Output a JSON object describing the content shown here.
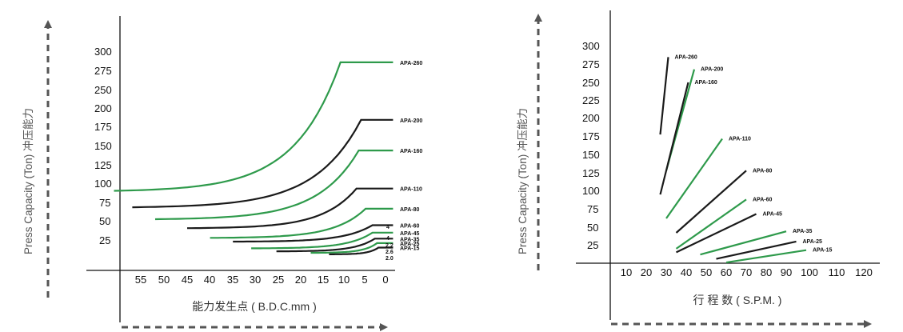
{
  "colors": {
    "green": "#2e9a4b",
    "black": "#1a1a1a",
    "axis": "#111111",
    "arrow": "#555555"
  },
  "chart_data": [
    {
      "type": "line",
      "xlabel": "能力发生点 ( B.D.C.mm )",
      "ylabel": "Press Capacity (Ton)   冲压能力",
      "x_ticks": [
        "55",
        "50",
        "45",
        "40",
        "35",
        "30",
        "25",
        "20",
        "15",
        "10",
        "5",
        "0"
      ],
      "y_ticks": [
        "300",
        "275",
        "250",
        "200",
        "175",
        "150",
        "125",
        "100",
        "75",
        "50",
        "25"
      ],
      "xlim": [
        60,
        0
      ],
      "ylim": [
        0,
        310
      ],
      "series": [
        {
          "name": "APA-260",
          "color": "green",
          "x_start": 59,
          "x_flat": 9.5,
          "y_start": 88,
          "y_flat": 260
        },
        {
          "name": "APA-200",
          "color": "black",
          "x_start": 55,
          "x_flat": 5,
          "y_start": 66,
          "y_flat": 183
        },
        {
          "name": "APA-160",
          "color": "green",
          "x_start": 50,
          "x_flat": 5.5,
          "y_start": 50,
          "y_flat": 142
        },
        {
          "name": "APA-110",
          "color": "black",
          "x_start": 43,
          "x_flat": 6,
          "y_start": 38,
          "y_flat": 91
        },
        {
          "name": "APA-80",
          "color": "green",
          "x_start": 38,
          "x_flat": 4,
          "y_start": 25,
          "y_flat": 64
        },
        {
          "name": "APA-60",
          "color": "black",
          "x_start": 33,
          "x_flat": 2.5,
          "y_start": 20,
          "y_flat": 42
        },
        {
          "name": "APA-45",
          "color": "green",
          "x_start": 29,
          "x_flat": 2.5,
          "y_start": 11,
          "y_flat": 32
        },
        {
          "name": "APA-35",
          "color": "black",
          "x_start": 23.5,
          "x_flat": 2,
          "y_start": 7,
          "y_flat": 24
        },
        {
          "name": "APA-25",
          "color": "green",
          "x_start": 16,
          "x_flat": 1.5,
          "y_start": 5,
          "y_flat": 18
        },
        {
          "name": "APA-15",
          "color": "black",
          "x_start": 12,
          "x_flat": 1.2,
          "y_start": 3,
          "y_flat": 12
        }
      ],
      "annotations": [
        "4",
        "4",
        "2.2",
        "2.6",
        "2.0"
      ]
    },
    {
      "type": "line",
      "xlabel": "行 程 数 ( S.P.M. )",
      "ylabel": "Press Capacity (Ton)   冲压能力",
      "x_ticks": [
        "10",
        "20",
        "30",
        "40",
        "50",
        "60",
        "70",
        "80",
        "90",
        "100",
        "110",
        "120"
      ],
      "y_ticks": [
        "300",
        "275",
        "250",
        "225",
        "200",
        "175",
        "150",
        "125",
        "100",
        "75",
        "50",
        "25"
      ],
      "xlim": [
        0,
        120
      ],
      "ylim": [
        0,
        310
      ],
      "series": [
        {
          "name": "APA-260",
          "color": "black",
          "x": [
            27,
            31
          ],
          "y": [
            178,
            285
          ]
        },
        {
          "name": "APA-200",
          "color": "green",
          "x": [
            30,
            44
          ],
          "y": [
            128,
            268
          ]
        },
        {
          "name": "APA-160",
          "color": "black",
          "x": [
            27,
            41
          ],
          "y": [
            95,
            250
          ]
        },
        {
          "name": "APA-110",
          "color": "green",
          "x": [
            30,
            58
          ],
          "y": [
            62,
            172
          ]
        },
        {
          "name": "APA-80",
          "color": "black",
          "x": [
            35,
            70
          ],
          "y": [
            42,
            128
          ]
        },
        {
          "name": "APA-60",
          "color": "green",
          "x": [
            35,
            70
          ],
          "y": [
            20,
            88
          ]
        },
        {
          "name": "APA-45",
          "color": "black",
          "x": [
            35,
            75
          ],
          "y": [
            15,
            68
          ]
        },
        {
          "name": "APA-35",
          "color": "green",
          "x": [
            47,
            90
          ],
          "y": [
            12,
            44
          ]
        },
        {
          "name": "APA-25",
          "color": "black",
          "x": [
            55,
            95
          ],
          "y": [
            6,
            30
          ]
        },
        {
          "name": "APA-15",
          "color": "green",
          "x": [
            60,
            100
          ],
          "y": [
            1,
            18
          ]
        }
      ]
    }
  ]
}
